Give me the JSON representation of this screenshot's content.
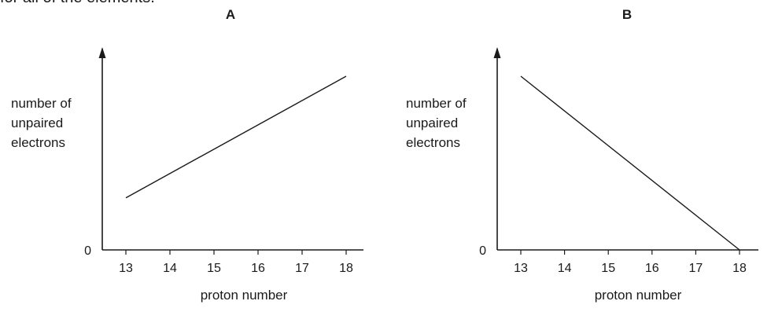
{
  "header_fragment": "for all of the elements.",
  "chart_data": [
    {
      "type": "line",
      "title": "A",
      "ylabel": [
        "number of",
        "unpaired",
        "electrons"
      ],
      "xlabel": "proton number",
      "x_ticks": [
        "13",
        "14",
        "15",
        "16",
        "17",
        "18"
      ],
      "y_ticks": [
        "0"
      ],
      "xlim": [
        12.4,
        18.5
      ],
      "ylim": [
        0,
        3.4
      ],
      "grid": false,
      "series": [
        {
          "x": [
            13,
            18
          ],
          "y": [
            0.9,
            3.0
          ]
        }
      ]
    },
    {
      "type": "line",
      "title": "B",
      "ylabel": [
        "number of",
        "unpaired",
        "electrons"
      ],
      "xlabel": "proton number",
      "x_ticks": [
        "13",
        "14",
        "15",
        "16",
        "17",
        "18"
      ],
      "y_ticks": [
        "0"
      ],
      "xlim": [
        12.4,
        18.5
      ],
      "ylim": [
        0,
        3.4
      ],
      "grid": false,
      "series": [
        {
          "x": [
            13,
            18
          ],
          "y": [
            3.0,
            0
          ]
        }
      ]
    }
  ]
}
